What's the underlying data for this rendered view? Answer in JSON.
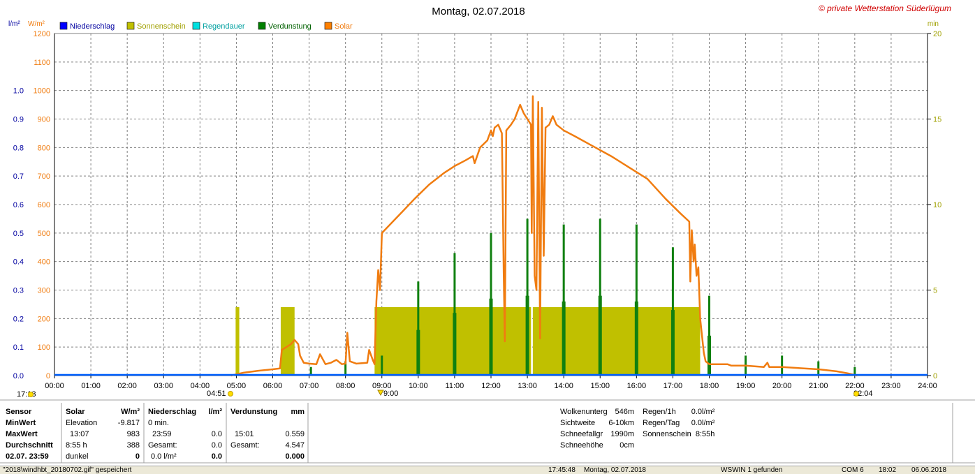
{
  "page_title": "Montag, 02.07.2018",
  "copyright": "© private Wetterstation Süderlügum",
  "left_unit1": "l/m²",
  "left_unit2": "W/m²",
  "right_unit": "min",
  "legend": [
    {
      "label": "Niederschlag",
      "color": "#0000ff"
    },
    {
      "label": "Sonnenschein",
      "color": "#c0c000"
    },
    {
      "label": "Regendauer",
      "color": "#00e0e0"
    },
    {
      "label": "Verdunstung",
      "color": "#008000"
    },
    {
      "label": "Solar",
      "color": "#ff8000"
    }
  ],
  "colors": {
    "solar": "#f07c10",
    "sun": "#c0c000",
    "evap": "#108010",
    "rain": "#0060ff",
    "sunText": "#a0a000",
    "solarText": "#f07c10",
    "rainText": "#0000a0",
    "grid": "#808080"
  },
  "chart_data": {
    "type": "line",
    "x_ticks": [
      "00:00",
      "01:00",
      "02:00",
      "03:00",
      "04:00",
      "05:00",
      "06:00",
      "07:00",
      "08:00",
      "09:00",
      "10:00",
      "11:00",
      "12:00",
      "13:00",
      "14:00",
      "15:00",
      "16:00",
      "17:00",
      "18:00",
      "19:00",
      "20:00",
      "21:00",
      "22:00",
      "23:00",
      "24:00"
    ],
    "y_left_rain_ticks": [
      "0.0",
      "0.1",
      "0.2",
      "0.3",
      "0.4",
      "0.5",
      "0.6",
      "0.7",
      "0.8",
      "0.9",
      "1.0"
    ],
    "y_left_solar_ticks": [
      "0",
      "100",
      "200",
      "300",
      "400",
      "500",
      "600",
      "700",
      "800",
      "900",
      "1000",
      "1100",
      "1200"
    ],
    "y_right_ticks": [
      "0",
      "5",
      "10",
      "15",
      "20"
    ],
    "ylim_solar": [
      0,
      1200
    ],
    "ylim_min": [
      0,
      20
    ],
    "markers": {
      "moonset": "17:13",
      "sunrise": "04:51",
      "noon": "9:00",
      "sunset": "22:04"
    },
    "solar_series": [
      [
        4.85,
        0
      ],
      [
        5.2,
        10
      ],
      [
        5.6,
        17
      ],
      [
        6.0,
        22
      ],
      [
        6.2,
        25
      ],
      [
        6.25,
        90
      ],
      [
        6.5,
        110
      ],
      [
        6.6,
        125
      ],
      [
        6.7,
        110
      ],
      [
        6.75,
        70
      ],
      [
        6.85,
        45
      ],
      [
        7.0,
        42
      ],
      [
        7.2,
        40
      ],
      [
        7.3,
        75
      ],
      [
        7.45,
        40
      ],
      [
        7.6,
        45
      ],
      [
        7.75,
        55
      ],
      [
        7.9,
        40
      ],
      [
        8.0,
        42
      ],
      [
        8.05,
        150
      ],
      [
        8.12,
        50
      ],
      [
        8.3,
        42
      ],
      [
        8.6,
        45
      ],
      [
        8.65,
        90
      ],
      [
        8.75,
        55
      ],
      [
        8.8,
        40
      ],
      [
        8.85,
        260
      ],
      [
        8.9,
        370
      ],
      [
        8.95,
        300
      ],
      [
        9.0,
        500
      ],
      [
        9.3,
        540
      ],
      [
        9.6,
        580
      ],
      [
        9.9,
        620
      ],
      [
        10.3,
        670
      ],
      [
        10.7,
        710
      ],
      [
        11.0,
        735
      ],
      [
        11.3,
        755
      ],
      [
        11.5,
        770
      ],
      [
        11.55,
        745
      ],
      [
        11.7,
        800
      ],
      [
        11.9,
        825
      ],
      [
        12.0,
        860
      ],
      [
        12.05,
        840
      ],
      [
        12.1,
        870
      ],
      [
        12.2,
        880
      ],
      [
        12.3,
        850
      ],
      [
        12.35,
        360
      ],
      [
        12.38,
        120
      ],
      [
        12.42,
        860
      ],
      [
        12.55,
        880
      ],
      [
        12.65,
        900
      ],
      [
        12.8,
        950
      ],
      [
        12.9,
        920
      ],
      [
        13.0,
        900
      ],
      [
        13.1,
        880
      ],
      [
        13.12,
        500
      ],
      [
        13.15,
        980
      ],
      [
        13.2,
        350
      ],
      [
        13.25,
        300
      ],
      [
        13.3,
        960
      ],
      [
        13.35,
        130
      ],
      [
        13.4,
        940
      ],
      [
        13.45,
        420
      ],
      [
        13.5,
        870
      ],
      [
        13.6,
        880
      ],
      [
        13.7,
        910
      ],
      [
        13.8,
        880
      ],
      [
        14.0,
        860
      ],
      [
        14.3,
        840
      ],
      [
        14.8,
        805
      ],
      [
        15.3,
        770
      ],
      [
        15.8,
        730
      ],
      [
        16.3,
        690
      ],
      [
        16.8,
        620
      ],
      [
        17.2,
        570
      ],
      [
        17.45,
        540
      ],
      [
        17.48,
        330
      ],
      [
        17.52,
        510
      ],
      [
        17.57,
        400
      ],
      [
        17.6,
        460
      ],
      [
        17.65,
        350
      ],
      [
        17.7,
        380
      ],
      [
        17.75,
        200
      ],
      [
        17.85,
        80
      ],
      [
        17.9,
        50
      ],
      [
        18.0,
        40
      ],
      [
        18.5,
        40
      ],
      [
        18.6,
        35
      ],
      [
        19.0,
        35
      ],
      [
        19.5,
        30
      ],
      [
        19.6,
        45
      ],
      [
        19.65,
        30
      ],
      [
        20.0,
        30
      ],
      [
        21.0,
        22
      ],
      [
        21.5,
        15
      ],
      [
        21.8,
        8
      ],
      [
        22.07,
        0
      ]
    ],
    "sunshine_blocks": [
      [
        4.98,
        5.08,
        4.0
      ],
      [
        6.22,
        6.6,
        4.0
      ],
      [
        8.8,
        13.1,
        4.0
      ],
      [
        13.15,
        17.75,
        4.0
      ]
    ],
    "evap_bars": [
      [
        8.0,
        0.05
      ],
      [
        9.0,
        0.07
      ],
      [
        10.0,
        0.33
      ],
      [
        11.0,
        0.43
      ],
      [
        12.0,
        0.5
      ],
      [
        13.0,
        0.55
      ],
      [
        14.0,
        0.53
      ],
      [
        15.0,
        0.55
      ],
      [
        16.0,
        0.53
      ],
      [
        17.0,
        0.45
      ],
      [
        18.0,
        0.28
      ],
      [
        19.0,
        0.07
      ],
      [
        20.0,
        0.07
      ],
      [
        21.0,
        0.05
      ],
      [
        22.0,
        0.03
      ],
      [
        7.05,
        0.03
      ]
    ],
    "evap_inner": [
      [
        10.0,
        0.16
      ],
      [
        11.0,
        0.22
      ],
      [
        12.0,
        0.27
      ],
      [
        13.0,
        0.28
      ],
      [
        14.0,
        0.26
      ],
      [
        15.0,
        0.28
      ],
      [
        16.0,
        0.26
      ],
      [
        17.0,
        0.23
      ],
      [
        18.0,
        0.14
      ]
    ]
  },
  "table": {
    "col_sensor": [
      "Sensor",
      "MinWert",
      "MaxWert",
      "Durchschnitt",
      "02.07. 23:59"
    ],
    "solar_head": "Solar",
    "solar_unit": "W/m²",
    "solar_rows": [
      [
        "Elevation",
        "-9.817"
      ],
      [
        "13:07",
        "983"
      ],
      [
        "8:55 h",
        "388"
      ],
      [
        "dunkel",
        "0"
      ]
    ],
    "rain_head": "Niederschlag",
    "rain_unit": "l/m²",
    "rain_rows": [
      [
        "0 min.",
        ""
      ],
      [
        "23:59",
        "0.0"
      ],
      [
        "Gesamt:",
        "0.0"
      ],
      [
        "0.0 l/m²",
        "0.0"
      ]
    ],
    "evap_head": "Verdunstung",
    "evap_unit": "mm",
    "evap_rows": [
      [
        "",
        ""
      ],
      [
        "15:01",
        "0.559"
      ],
      [
        "Gesamt:",
        "4.547"
      ],
      [
        "",
        "0.000"
      ]
    ],
    "weather1": [
      [
        "Wolkenunterg",
        "546m"
      ],
      [
        "Sichtweite",
        "6-10km"
      ],
      [
        "Schneefallgr",
        "1990m"
      ],
      [
        "Schneehöhe",
        "0cm"
      ]
    ],
    "weather2": [
      [
        "Regen/1h",
        "0.0l/m²"
      ],
      [
        "Regen/Tag",
        "0.0l/m²"
      ],
      [
        "Sonnenschein",
        "8:55h"
      ]
    ]
  },
  "status": {
    "file": "\"2018\\windhbt_20180702.gif\" gespeichert",
    "time": "17:45:48",
    "date": "Montag, 02.07.2018",
    "ws": "WSWIN 1 gefunden",
    "com": "COM 6",
    "clock": "18:02",
    "today": "06.06.2018"
  }
}
